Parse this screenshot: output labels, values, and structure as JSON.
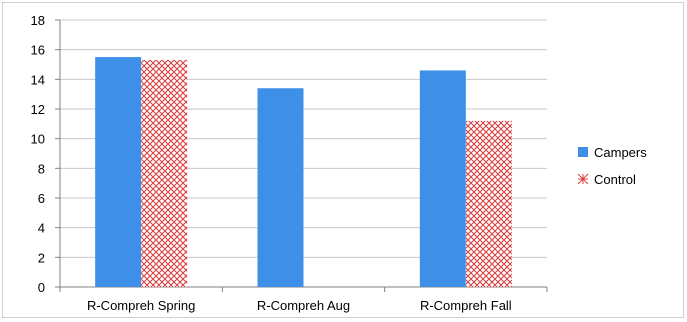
{
  "chart_data": {
    "type": "bar",
    "categories": [
      "R-Compreh Spring",
      "R-Compreh Aug",
      "R-Compreh Fall"
    ],
    "series": [
      {
        "name": "Campers",
        "values": [
          15.5,
          13.4,
          14.6
        ],
        "color": "#3d8fe8",
        "pattern": "solid"
      },
      {
        "name": "Control",
        "values": [
          15.3,
          null,
          11.2
        ],
        "color": "#e05050",
        "pattern": "crosshatch"
      }
    ],
    "ylim": [
      0,
      18
    ],
    "yticks": [
      0,
      2,
      4,
      6,
      8,
      10,
      12,
      14,
      16,
      18
    ],
    "grid": true,
    "legend_position": "right"
  }
}
